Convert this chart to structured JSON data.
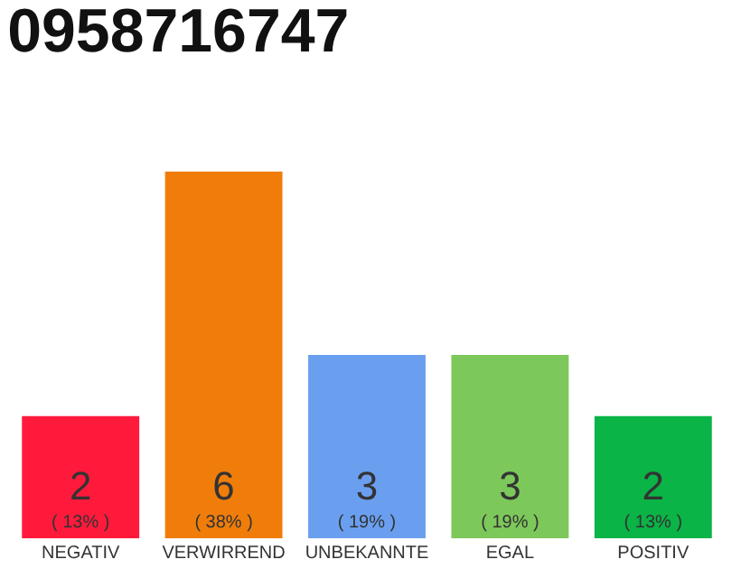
{
  "chart_data": {
    "type": "bar",
    "title": "0958716747",
    "categories": [
      "NEGATIV",
      "VERWIRREND",
      "UNBEKANNTE",
      "EGAL",
      "POSITIV"
    ],
    "values": [
      2,
      6,
      3,
      3,
      2
    ],
    "colors": [
      "#ff1a3c",
      "#f07d0a",
      "#6a9ff0",
      "#7dc85a",
      "#0ab446"
    ],
    "value_labels": [
      "2\n( 13% )",
      "6\n( 38% )",
      "3\n( 19% )",
      "3\n( 19% )",
      "2\n( 13% )"
    ],
    "legend": false
  }
}
